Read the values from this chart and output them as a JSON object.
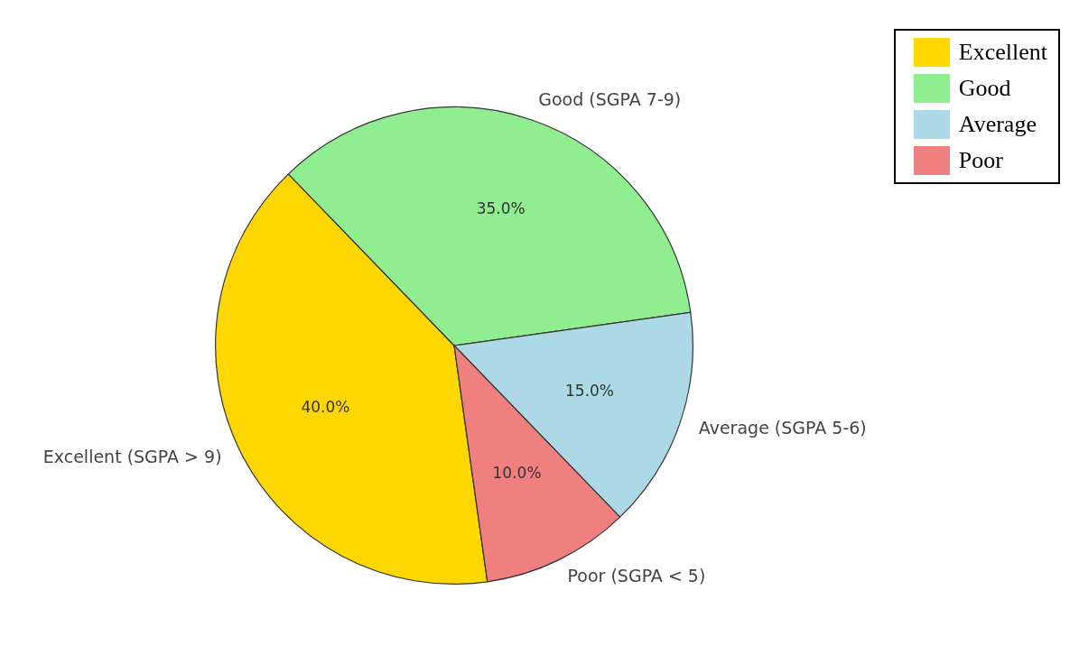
{
  "chart_data": {
    "type": "pie",
    "categories": [
      "Excellent (SGPA > 9)",
      "Good (SGPA 7-9)",
      "Average (SGPA 5-6)",
      "Poor (SGPA < 5)"
    ],
    "values": [
      40,
      35,
      15,
      10
    ],
    "colors": [
      "#ffd700",
      "#90ee90",
      "#add8e6",
      "#f08080"
    ],
    "value_labels": [
      "40.0%",
      "35.0%",
      "15.0%",
      "10.0%"
    ],
    "annotations": [
      "Excellent",
      "Good",
      "Average",
      "Poor"
    ]
  }
}
